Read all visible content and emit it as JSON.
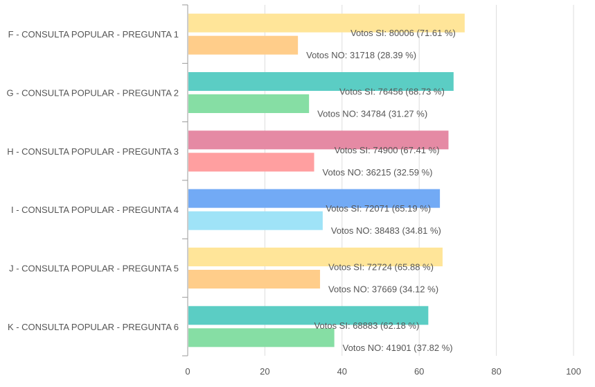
{
  "chart_data": {
    "type": "bar",
    "orientation": "horizontal",
    "categories": [
      "F - CONSULTA POPULAR - PREGUNTA 1",
      "G - CONSULTA POPULAR - PREGUNTA 2",
      "H - CONSULTA POPULAR - PREGUNTA 3",
      "I - CONSULTA POPULAR - PREGUNTA 4",
      "J - CONSULTA POPULAR - PREGUNTA 5",
      "K - CONSULTA POPULAR - PREGUNTA 6"
    ],
    "series": [
      {
        "name": "Votos SI",
        "values": [
          71.61,
          68.73,
          67.41,
          65.19,
          65.88,
          62.18
        ],
        "labels": [
          "Votos SI: 80006 (71.61 %)",
          "Votos SI: 76456 (68.73 %)",
          "Votos SI: 74900 (67.41 %)",
          "Votos SI: 72071 (65.19 %)",
          "Votos SI: 72724 (65.88 %)",
          "Votos SI: 68883 (62.18 %)"
        ],
        "colors": [
          "#ffe599",
          "#5bcdc4",
          "#e58aa4",
          "#72aaf5",
          "#ffe599",
          "#5bcdc4"
        ]
      },
      {
        "name": "Votos NO",
        "values": [
          28.39,
          31.27,
          32.59,
          34.81,
          34.12,
          37.82
        ],
        "labels": [
          "Votos NO: 31718 (28.39 %)",
          "Votos NO: 34784 (31.27 %)",
          "Votos NO: 36215 (32.59 %)",
          "Votos NO: 38483 (34.81 %)",
          "Votos NO: 37669 (34.12 %)",
          "Votos NO: 41901 (37.82 %)"
        ],
        "colors": [
          "#ffcd8a",
          "#86dea4",
          "#ff9fa0",
          "#9fe3f7",
          "#ffcd8a",
          "#86dea4"
        ]
      }
    ],
    "xlim": [
      0,
      100
    ],
    "xticks": [
      0,
      20,
      40,
      60,
      80,
      100
    ],
    "grid": true,
    "legend": "none",
    "title": "",
    "xlabel": "",
    "ylabel": ""
  }
}
